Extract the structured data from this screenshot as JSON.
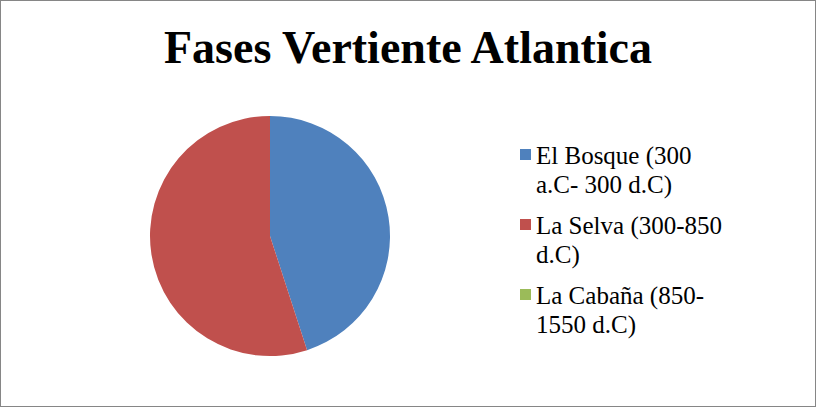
{
  "chart_data": {
    "type": "pie",
    "title": "Fases Vertiente Atlantica",
    "categories": [
      "El Bosque (300 a.C- 300 d.C)",
      "La Selva (300-850 d.C)",
      "La Cabaña (850-1550 d.C)"
    ],
    "values": [
      45,
      55,
      0
    ],
    "colors": [
      "#4f81bd",
      "#c0504d",
      "#9bbb59"
    ],
    "legend": "right"
  }
}
